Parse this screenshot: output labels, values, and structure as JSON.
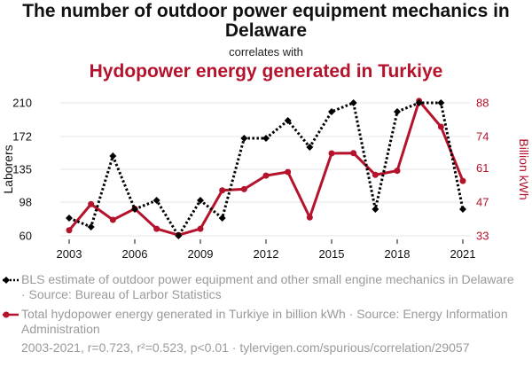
{
  "header": {
    "title": "The number of outdoor power equipment mechanics in Delaware",
    "connector": "correlates with",
    "subtitle": "Hydopower energy generated in Turkiye"
  },
  "colors": {
    "series1": "#000000",
    "series2": "#b5122b",
    "grid": "#e6e6e6",
    "muted": "#9a9a9a"
  },
  "chart_data": {
    "type": "line",
    "x": [
      2003,
      2004,
      2005,
      2006,
      2007,
      2008,
      2009,
      2010,
      2011,
      2012,
      2013,
      2014,
      2015,
      2016,
      2017,
      2018,
      2019,
      2020,
      2021
    ],
    "xticks": [
      "2003",
      "2006",
      "2009",
      "2012",
      "2015",
      "2018",
      "2021"
    ],
    "xtick_values": [
      2003,
      2006,
      2009,
      2012,
      2015,
      2018,
      2021
    ],
    "xlim": [
      2003,
      2021
    ],
    "left_axis": {
      "label": "Laborers",
      "ticks": [
        "60",
        "98",
        "135",
        "172",
        "210"
      ],
      "tick_values": [
        60,
        98,
        135,
        172,
        210
      ],
      "ylim": [
        60,
        210
      ]
    },
    "right_axis": {
      "label": "Billion kWh",
      "ticks": [
        "33",
        "47",
        "61",
        "74",
        "88"
      ],
      "tick_values": [
        33,
        47,
        61,
        74,
        88
      ],
      "ylim": [
        33,
        88
      ]
    },
    "series": [
      {
        "name": "BLS estimate of outdoor power equipment and other small engine mechanics in Delaware",
        "axis": "left",
        "style": "dotted",
        "marker": "diamond",
        "values": [
          80,
          70,
          150,
          90,
          100,
          60,
          100,
          80,
          170,
          170,
          190,
          160,
          200,
          210,
          90,
          200,
          210,
          210,
          90
        ]
      },
      {
        "name": "Total hydopower energy generated in Turkiye in billion kWh",
        "axis": "right",
        "style": "solid",
        "marker": "circle",
        "values": [
          35.3,
          46.1,
          39.6,
          44.2,
          35.9,
          33.3,
          35.9,
          51.8,
          52.3,
          57.9,
          59.4,
          40.6,
          67.1,
          67.2,
          58.2,
          59.9,
          88.8,
          78.1,
          55.7
        ]
      }
    ]
  },
  "legend": {
    "item1": "BLS estimate of outdoor power equipment and other small engine mechanics in Delaware · Source: Bureau of Larbor Statistics",
    "item2": "Total hydopower energy generated in Turkiye in billion kWh · Source: Energy Information Administration"
  },
  "footer": {
    "stats": "2003-2021, r=0.723, r²=0.523, p<0.01 · tylervigen.com/spurious/correlation/29057"
  }
}
